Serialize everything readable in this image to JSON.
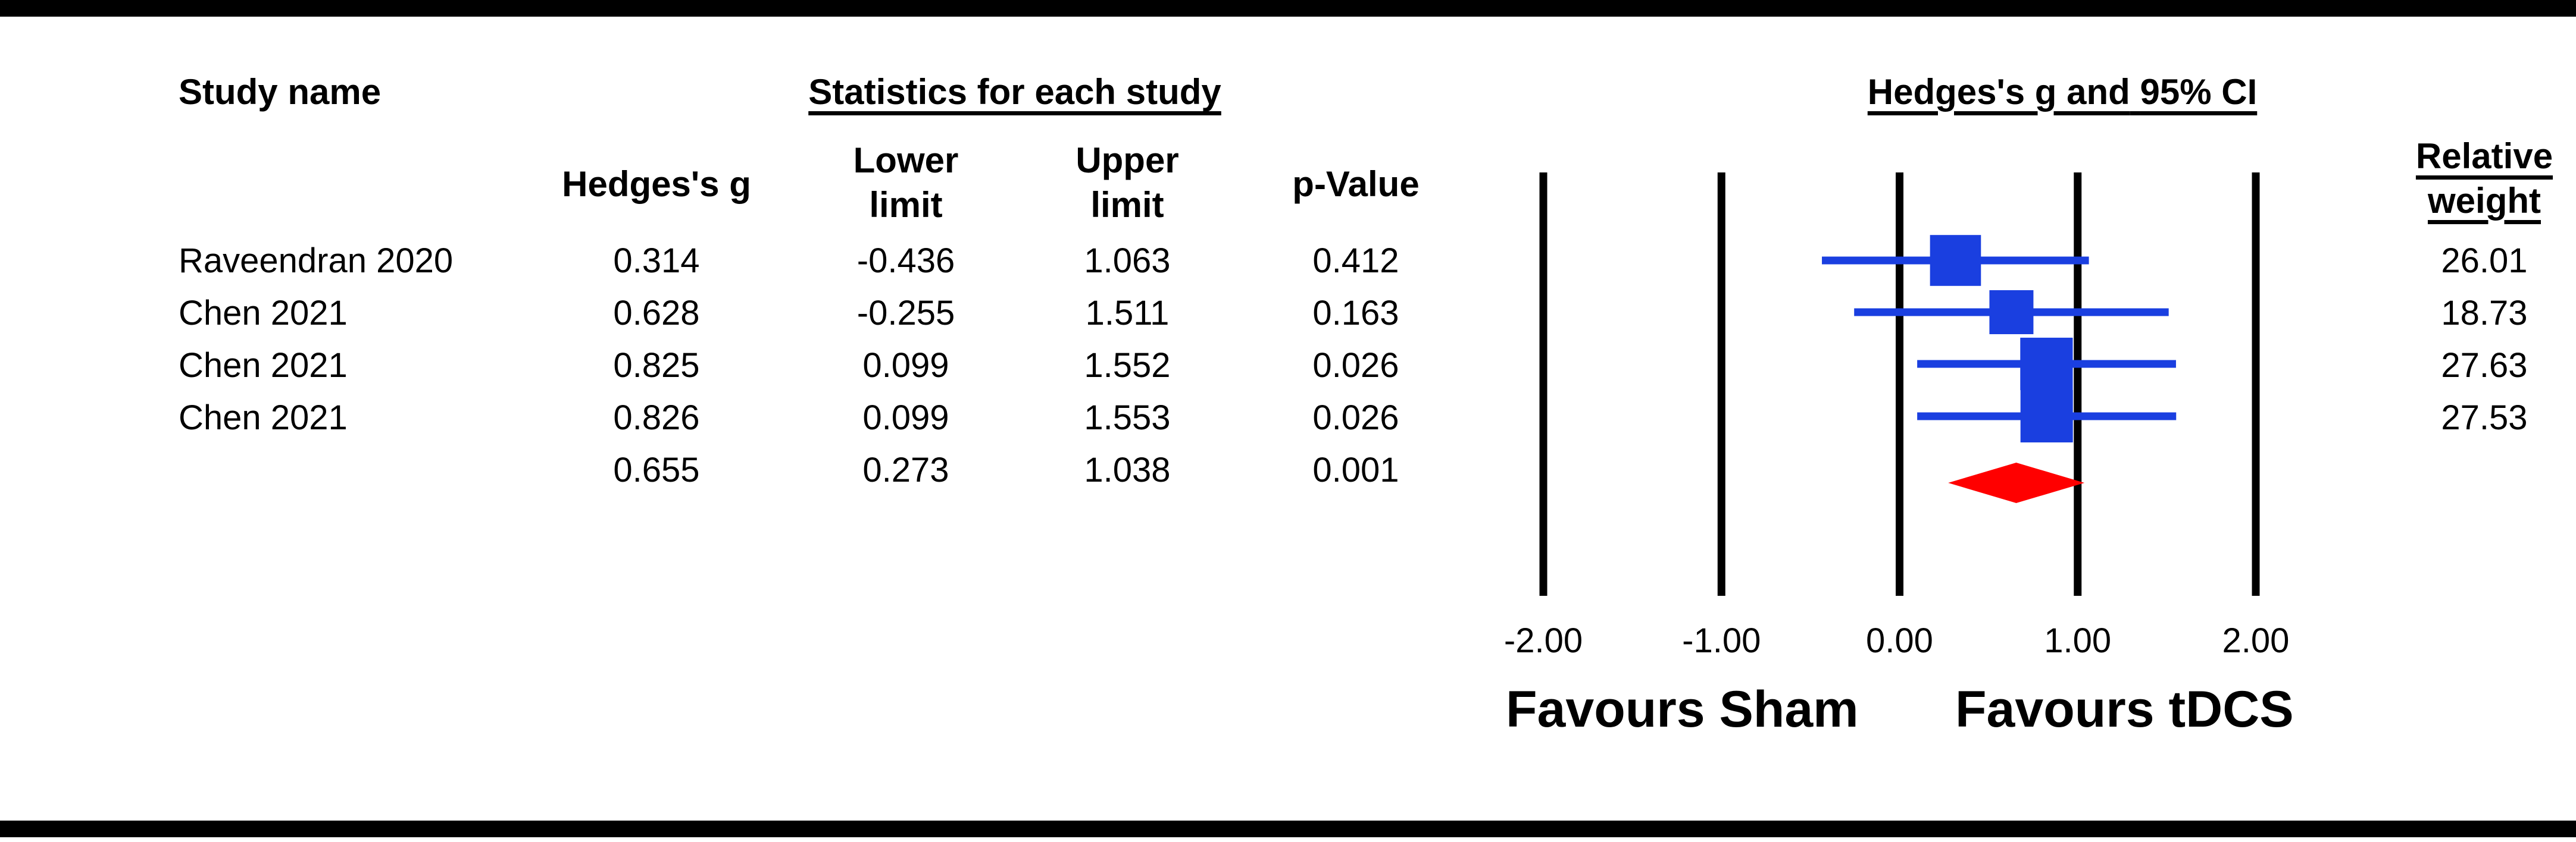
{
  "table": {
    "study_header": "Study name",
    "stats_header": "Statistics for each study",
    "col_hedges": "Hedges's g",
    "col_lower": "Lower\nlimit",
    "col_upper": "Upper\nlimit",
    "col_p": "p-Value",
    "col_weight": "Relative\nweight",
    "rows": [
      {
        "study": "Raveendran 2020",
        "g": "0.314",
        "lower": "-0.436",
        "upper": "1.063",
        "p": "0.412",
        "weight": "26.01"
      },
      {
        "study": "Chen 2021",
        "g": "0.628",
        "lower": "-0.255",
        "upper": "1.511",
        "p": "0.163",
        "weight": "18.73"
      },
      {
        "study": "Chen 2021",
        "g": "0.825",
        "lower": "0.099",
        "upper": "1.552",
        "p": "0.026",
        "weight": "27.63"
      },
      {
        "study": "Chen 2021",
        "g": "0.826",
        "lower": "0.099",
        "upper": "1.553",
        "p": "0.026",
        "weight": "27.53"
      }
    ],
    "summary": {
      "g": "0.655",
      "lower": "0.273",
      "upper": "1.038",
      "p": "0.001"
    }
  },
  "chart_data": {
    "type": "scatter",
    "subtype": "forest-plot",
    "title_part1": "Hedges's g and",
    "title_part2": "95% CI",
    "xlim": [
      -2.0,
      2.0
    ],
    "ticks": [
      "-2.00",
      "-1.00",
      "0.00",
      "1.00",
      "2.00"
    ],
    "tick_values": [
      -2,
      -1,
      0,
      1,
      2
    ],
    "favours_left": "Favours Sham",
    "favours_right": "Favours tDCS",
    "studies": [
      {
        "g": 0.314,
        "lower": -0.436,
        "upper": 1.063,
        "weight": 26.01
      },
      {
        "g": 0.628,
        "lower": -0.255,
        "upper": 1.511,
        "weight": 18.73
      },
      {
        "g": 0.825,
        "lower": 0.099,
        "upper": 1.552,
        "weight": 27.63
      },
      {
        "g": 0.826,
        "lower": 0.099,
        "upper": 1.553,
        "weight": 27.53
      }
    ],
    "summary": {
      "g": 0.655,
      "lower": 0.273,
      "upper": 1.038
    },
    "colors": {
      "study": "#1a3fe0",
      "summary": "#ff0000",
      "lines": "#000000"
    }
  }
}
